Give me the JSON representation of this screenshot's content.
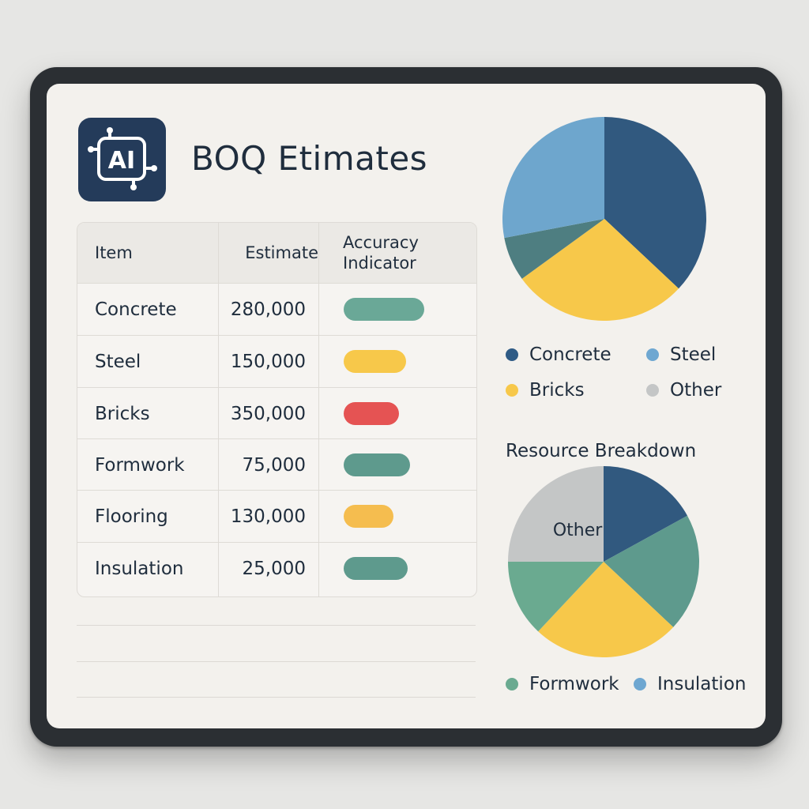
{
  "app": {
    "title": "BOQ Etimates",
    "icon_label": "AI",
    "icon": "ai-circuit-icon"
  },
  "table": {
    "headers": {
      "item": "Item",
      "estimate": "Estimate",
      "accuracy_line1": "Accuracy",
      "accuracy_line2": "Indicator"
    },
    "rows": [
      {
        "item": "Concrete",
        "estimate": "280,000",
        "accuracy_color": "#6aa897"
      },
      {
        "item": "Steel",
        "estimate": "150,000",
        "accuracy_color": "#f7c84a"
      },
      {
        "item": "Bricks",
        "estimate": "350,000",
        "accuracy_color": "#e55353"
      },
      {
        "item": "Formwork",
        "estimate": "75,000",
        "accuracy_color": "#5e9a8d"
      },
      {
        "item": "Flooring",
        "estimate": "130,000",
        "accuracy_color": "#f5bd4f"
      },
      {
        "item": "Insulation",
        "estimate": "25,000",
        "accuracy_color": "#5e9a8d"
      }
    ]
  },
  "legend_top": [
    {
      "label": "Concrete",
      "color": "#2f5b85"
    },
    {
      "label": "Steel",
      "color": "#6ea7d1"
    },
    {
      "label": "Bricks",
      "color": "#f7c84a"
    },
    {
      "label": "Other",
      "color": "#c4c6c6"
    }
  ],
  "section_title": "Resource Breakdown",
  "legend_bottom": [
    {
      "label": "Formwork",
      "color": "#6aaa90"
    },
    {
      "label": "Insulation",
      "color": "#6ea7d1"
    }
  ],
  "chart_data": [
    {
      "type": "pie",
      "title": "",
      "slices": [
        {
          "value": 37,
          "color": "#31597f"
        },
        {
          "value": 28,
          "color": "#f7c84a"
        },
        {
          "value": 7,
          "color": "#4e7e81"
        },
        {
          "value": 28,
          "color": "#6ea6cd"
        }
      ]
    },
    {
      "type": "pie",
      "title": "Resource Breakdown",
      "slices": [
        {
          "value": 17,
          "color": "#31597f"
        },
        {
          "value": 20,
          "color": "#5e9a8d"
        },
        {
          "value": 25,
          "color": "#f7c84a"
        },
        {
          "value": 13,
          "color": "#6aaa90"
        },
        {
          "value": 25,
          "color": "#c4c6c6",
          "label": "Other"
        }
      ]
    }
  ]
}
